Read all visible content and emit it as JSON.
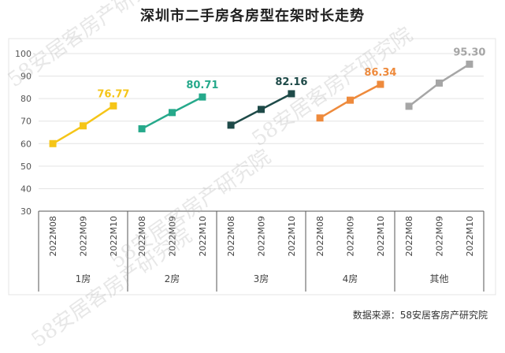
{
  "title": "深圳市二手房各房型在架时长走势",
  "source": "数据来源：58安居客房产研究院",
  "watermark": "58安居客房产研究院",
  "chart_data": {
    "type": "line",
    "ylim": [
      30,
      100
    ],
    "yticks": [
      30,
      40,
      50,
      60,
      70,
      80,
      90,
      100
    ],
    "grid": true,
    "groups": [
      {
        "name": "1房",
        "color": "#F5C518",
        "x": [
          "2022M08",
          "2022M09",
          "2022M10"
        ],
        "values": [
          60.0,
          67.9,
          76.77
        ],
        "end_label": "76.77"
      },
      {
        "name": "2房",
        "color": "#26A98B",
        "x": [
          "2022M08",
          "2022M09",
          "2022M10"
        ],
        "values": [
          66.6,
          73.8,
          80.71
        ],
        "end_label": "80.71"
      },
      {
        "name": "3房",
        "color": "#1E4A48",
        "x": [
          "2022M08",
          "2022M09",
          "2022M10"
        ],
        "values": [
          68.2,
          75.2,
          82.16
        ],
        "end_label": "82.16"
      },
      {
        "name": "4房",
        "color": "#EE8A3C",
        "x": [
          "2022M08",
          "2022M09",
          "2022M10"
        ],
        "values": [
          71.4,
          79.3,
          86.34
        ],
        "end_label": "86.34"
      },
      {
        "name": "其他",
        "color": "#A6A6A6",
        "x": [
          "2022M08",
          "2022M09",
          "2022M10"
        ],
        "values": [
          76.6,
          86.9,
          95.3
        ],
        "end_label": "95.30"
      }
    ]
  }
}
